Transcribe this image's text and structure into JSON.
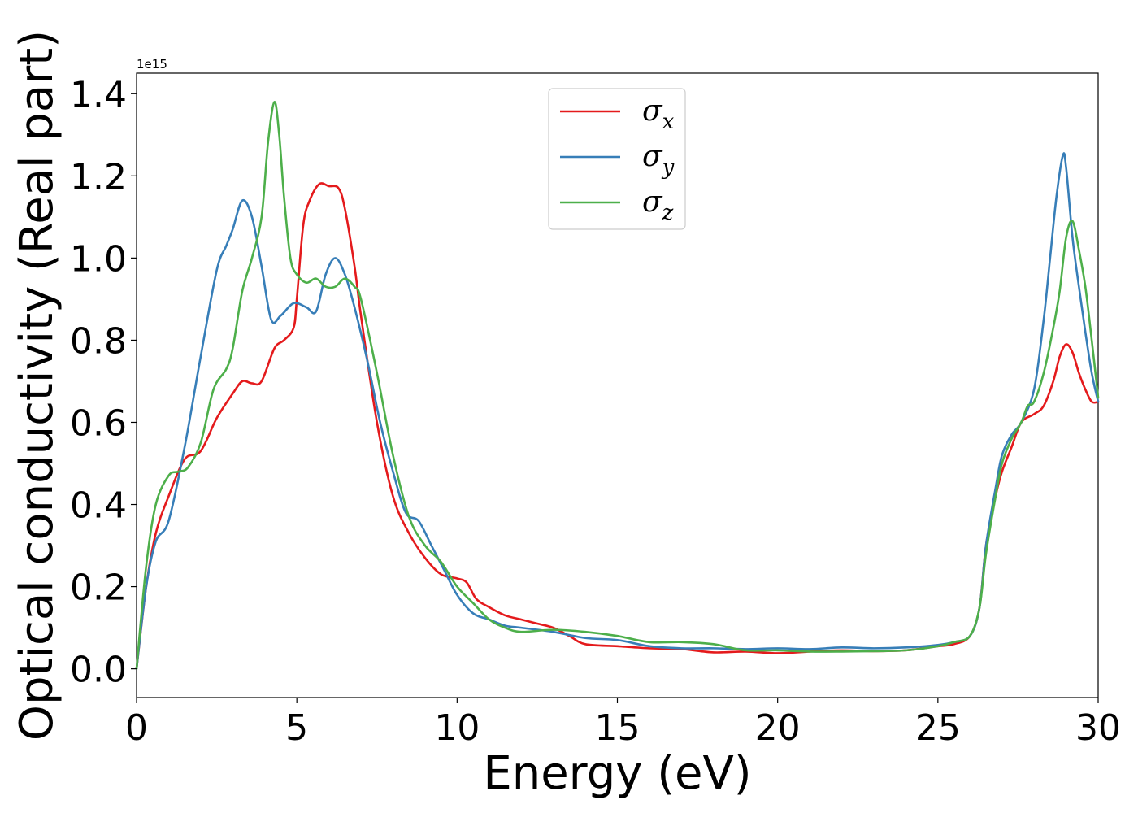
{
  "chart_data": {
    "type": "line",
    "xlabel": "Energy (eV)",
    "ylabel": "Optical conductivity (Real part)",
    "y_offset_text": "1e15",
    "xlim": [
      0,
      30
    ],
    "ylim": [
      -0.07,
      1.45
    ],
    "x_ticks": [
      0,
      5,
      10,
      15,
      20,
      25,
      30
    ],
    "x_tick_labels": [
      "0",
      "5",
      "10",
      "15",
      "20",
      "25",
      "30"
    ],
    "y_ticks": [
      0.0,
      0.2,
      0.4,
      0.6,
      0.8,
      1.0,
      1.2,
      1.4
    ],
    "y_tick_labels": [
      "0.0",
      "0.2",
      "0.4",
      "0.6",
      "0.8",
      "1.0",
      "1.2",
      "1.4"
    ],
    "grid": false,
    "legend_position": "top-center",
    "series": [
      {
        "name": "σx",
        "legend_symbol": "σ",
        "legend_subscript": "x",
        "color": "#e41a1c",
        "x": [
          0,
          0.3,
          0.6,
          1.0,
          1.5,
          2.0,
          2.5,
          3.0,
          3.3,
          3.6,
          3.9,
          4.3,
          4.6,
          4.9,
          5.0,
          5.2,
          5.4,
          5.7,
          6.0,
          6.3,
          6.5,
          6.8,
          7.0,
          7.5,
          8.0,
          8.5,
          9.0,
          9.5,
          10.0,
          10.3,
          10.6,
          11.0,
          11.5,
          12.0,
          12.5,
          13.0,
          13.5,
          14.0,
          15.0,
          16.0,
          17.0,
          18.0,
          19.0,
          20.0,
          21.0,
          22.0,
          23.0,
          24.0,
          25.0,
          25.5,
          26.0,
          26.3,
          26.5,
          26.8,
          27.0,
          27.3,
          27.6,
          28.0,
          28.3,
          28.6,
          28.8,
          29.0,
          29.2,
          29.4,
          29.6,
          29.8,
          30.0
        ],
        "y": [
          0.0,
          0.2,
          0.33,
          0.42,
          0.51,
          0.53,
          0.61,
          0.67,
          0.7,
          0.695,
          0.7,
          0.78,
          0.8,
          0.83,
          0.9,
          1.08,
          1.14,
          1.18,
          1.175,
          1.17,
          1.12,
          0.98,
          0.86,
          0.6,
          0.42,
          0.33,
          0.27,
          0.23,
          0.22,
          0.21,
          0.17,
          0.15,
          0.13,
          0.12,
          0.11,
          0.1,
          0.08,
          0.06,
          0.055,
          0.05,
          0.048,
          0.04,
          0.042,
          0.038,
          0.042,
          0.045,
          0.043,
          0.045,
          0.055,
          0.06,
          0.08,
          0.15,
          0.3,
          0.42,
          0.48,
          0.54,
          0.6,
          0.62,
          0.64,
          0.7,
          0.76,
          0.79,
          0.77,
          0.72,
          0.68,
          0.65,
          0.65
        ]
      },
      {
        "name": "σy",
        "legend_symbol": "σ",
        "legend_subscript": "y",
        "color": "#377eb8",
        "x": [
          0,
          0.3,
          0.6,
          1.0,
          1.5,
          2.0,
          2.5,
          2.8,
          3.0,
          3.3,
          3.6,
          3.9,
          4.2,
          4.5,
          4.9,
          5.3,
          5.6,
          5.9,
          6.2,
          6.5,
          6.8,
          7.2,
          7.6,
          8.0,
          8.4,
          8.8,
          9.2,
          9.6,
          10.0,
          10.5,
          11.0,
          11.5,
          12.0,
          13.0,
          14.0,
          15.0,
          16.0,
          17.0,
          18.0,
          19.0,
          20.0,
          21.0,
          22.0,
          23.0,
          24.0,
          25.0,
          25.5,
          26.0,
          26.3,
          26.5,
          26.8,
          27.0,
          27.3,
          27.6,
          28.0,
          28.3,
          28.5,
          28.7,
          28.9,
          29.0,
          29.2,
          29.4,
          29.6,
          29.8,
          30.0
        ],
        "y": [
          0.0,
          0.2,
          0.31,
          0.36,
          0.54,
          0.76,
          0.97,
          1.03,
          1.07,
          1.14,
          1.1,
          0.98,
          0.85,
          0.86,
          0.89,
          0.88,
          0.87,
          0.96,
          1.0,
          0.96,
          0.88,
          0.75,
          0.6,
          0.48,
          0.38,
          0.36,
          0.3,
          0.24,
          0.18,
          0.135,
          0.12,
          0.105,
          0.1,
          0.09,
          0.075,
          0.07,
          0.055,
          0.05,
          0.05,
          0.048,
          0.05,
          0.048,
          0.052,
          0.05,
          0.052,
          0.058,
          0.065,
          0.08,
          0.15,
          0.3,
          0.44,
          0.52,
          0.57,
          0.6,
          0.68,
          0.85,
          1.0,
          1.15,
          1.25,
          1.22,
          1.05,
          0.93,
          0.82,
          0.72,
          0.65
        ]
      },
      {
        "name": "σz",
        "legend_symbol": "σ",
        "legend_subscript": "z",
        "color": "#4daf4a",
        "x": [
          0,
          0.3,
          0.6,
          1.0,
          1.3,
          1.6,
          2.0,
          2.4,
          2.8,
          3.0,
          3.3,
          3.6,
          3.9,
          4.1,
          4.3,
          4.45,
          4.6,
          4.8,
          5.0,
          5.3,
          5.6,
          5.9,
          6.2,
          6.5,
          6.8,
          7.0,
          7.5,
          8.0,
          8.5,
          9.0,
          9.5,
          10.0,
          10.5,
          11.0,
          11.5,
          12.0,
          13.0,
          14.0,
          15.0,
          16.0,
          17.0,
          18.0,
          19.0,
          20.0,
          21.0,
          22.0,
          23.0,
          24.0,
          25.0,
          25.5,
          26.0,
          26.3,
          26.5,
          26.8,
          27.0,
          27.3,
          27.6,
          27.8,
          28.0,
          28.3,
          28.6,
          28.8,
          29.0,
          29.2,
          29.4,
          29.6,
          29.8,
          30.0
        ],
        "y": [
          0.0,
          0.25,
          0.4,
          0.47,
          0.48,
          0.49,
          0.55,
          0.68,
          0.73,
          0.78,
          0.92,
          1.0,
          1.1,
          1.28,
          1.38,
          1.3,
          1.15,
          1.0,
          0.96,
          0.94,
          0.95,
          0.93,
          0.93,
          0.95,
          0.93,
          0.9,
          0.72,
          0.52,
          0.37,
          0.3,
          0.26,
          0.2,
          0.16,
          0.12,
          0.1,
          0.09,
          0.095,
          0.09,
          0.08,
          0.065,
          0.065,
          0.06,
          0.045,
          0.045,
          0.042,
          0.042,
          0.043,
          0.045,
          0.055,
          0.065,
          0.08,
          0.15,
          0.28,
          0.42,
          0.5,
          0.56,
          0.6,
          0.64,
          0.65,
          0.72,
          0.83,
          0.92,
          1.05,
          1.09,
          1.02,
          0.93,
          0.8,
          0.66
        ]
      }
    ]
  }
}
